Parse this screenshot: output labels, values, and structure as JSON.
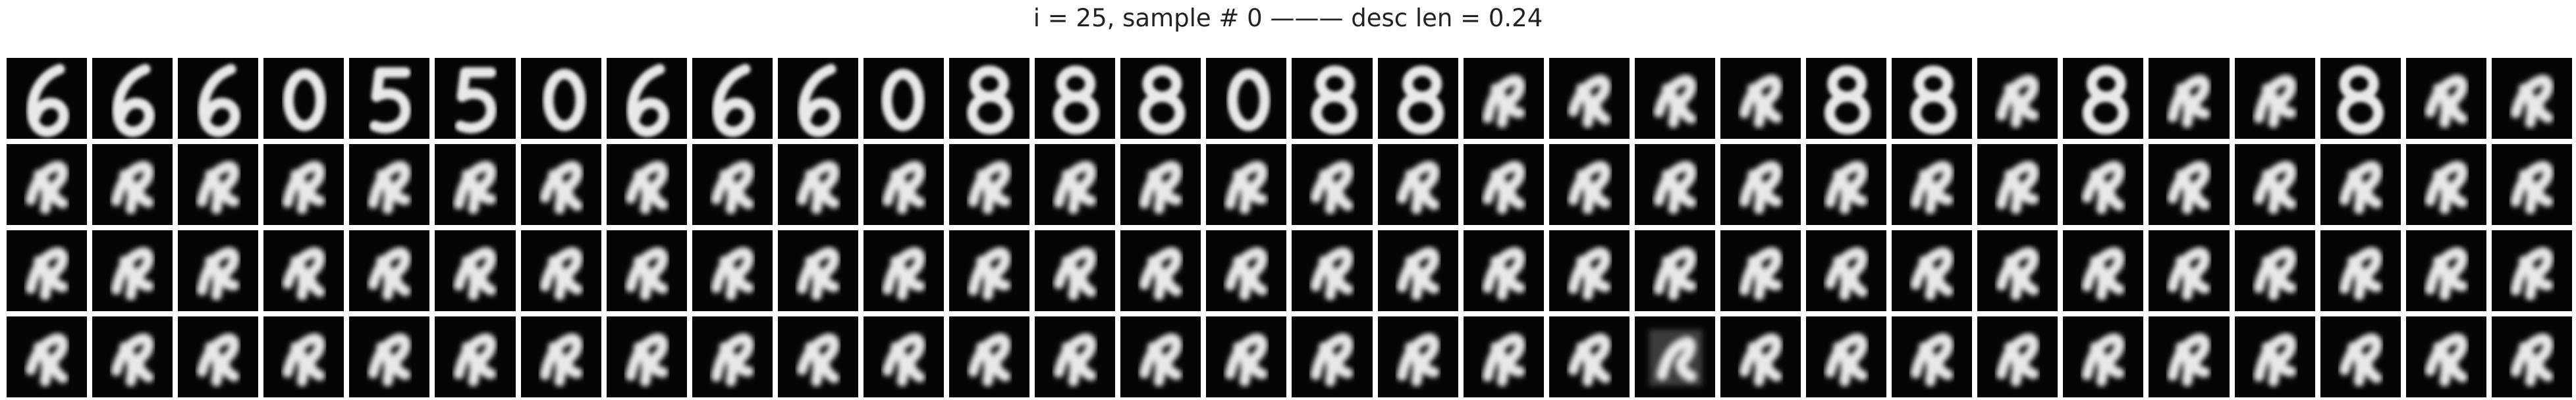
{
  "figure": {
    "title": "i = 25, sample # 0 ——— desc len = 0.24"
  },
  "grid": {
    "rows": 4,
    "cols": 30,
    "tiles": [
      "6",
      "6",
      "6",
      "0",
      "5",
      "5",
      "0",
      "6",
      "6",
      "6",
      "0",
      "8",
      "8",
      "8",
      "0",
      "8",
      "8",
      "blob",
      "blob",
      "blob",
      "blob",
      "8",
      "8",
      "blob",
      "8",
      "blob",
      "blob",
      "8",
      "blob",
      "blob",
      "blob",
      "blob",
      "blob",
      "blob",
      "blob",
      "blob",
      "blob",
      "blob",
      "blob",
      "blob",
      "blob",
      "blob",
      "blob",
      "blob",
      "blob",
      "blob",
      "blob",
      "blob",
      "blob",
      "blob",
      "blob",
      "blob",
      "blob",
      "blob",
      "blob",
      "blob",
      "blob",
      "blob",
      "blob",
      "blob",
      "blob",
      "blob",
      "blob",
      "blob",
      "blob",
      "blob",
      "blob",
      "blob",
      "blob",
      "blob",
      "blob",
      "blob",
      "blob",
      "blob",
      "blob",
      "blob",
      "blob",
      "blob",
      "blob",
      "blob",
      "blob",
      "blob",
      "blob",
      "blob",
      "blob",
      "blob",
      "blob",
      "blob",
      "blob",
      "blob",
      "blob",
      "blob",
      "blob",
      "blob",
      "blob",
      "blob",
      "blob",
      "blob",
      "blob",
      "blob",
      "blob",
      "blob",
      "blob",
      "blob",
      "blob",
      "blob",
      "blob",
      "blob",
      "blob",
      "noise",
      "blob",
      "blob",
      "blob",
      "blob",
      "blob",
      "blob",
      "blob",
      "blob",
      "blob",
      "blob"
    ]
  },
  "colors": {
    "background": "#ffffff",
    "tile_background": "#050505",
    "stroke": "#e8e8e8"
  }
}
